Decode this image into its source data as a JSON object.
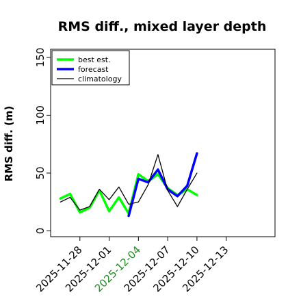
{
  "chart_data": {
    "type": "line",
    "title": "RMS diff., mixed layer depth",
    "xlabel": "",
    "ylabel": "RMS diff. (m)",
    "ylim": [
      -5,
      157
    ],
    "yticks": [
      0,
      50,
      100,
      150
    ],
    "xlim": [
      -1.0,
      22.0
    ],
    "x_ticks": [
      {
        "label": "2025-11-28",
        "pos": 2,
        "color": "#000000"
      },
      {
        "label": "2025-12-01",
        "pos": 5,
        "color": "#000000"
      },
      {
        "label": "2025-12-04",
        "pos": 8,
        "color": "#228B22"
      },
      {
        "label": "2025-12-07",
        "pos": 11,
        "color": "#000000"
      },
      {
        "label": "2025-12-10",
        "pos": 14,
        "color": "#000000"
      },
      {
        "label": "2025-12-13",
        "pos": 17,
        "color": "#000000"
      }
    ],
    "x": [
      0,
      1,
      2,
      3,
      4,
      5,
      6,
      7,
      8,
      9,
      10,
      11,
      12,
      13,
      14,
      15
    ],
    "series": [
      {
        "name": "best est.",
        "color": "#00ff00",
        "width": 3.5,
        "values": [
          28,
          32,
          16,
          20,
          35,
          17,
          29,
          15,
          49,
          43,
          49,
          37,
          31,
          36,
          31,
          null
        ]
      },
      {
        "name": "forecast",
        "color": "#0000ff",
        "width": 3.5,
        "values": [
          null,
          null,
          null,
          null,
          null,
          null,
          null,
          13,
          45,
          42,
          53,
          36,
          30,
          39,
          67,
          null
        ]
      },
      {
        "name": "climatology",
        "color": "#000000",
        "width": 1.3,
        "values": [
          25,
          29,
          18,
          21,
          36,
          27,
          38,
          23,
          25,
          40,
          66,
          35,
          21,
          36,
          50,
          null
        ]
      }
    ],
    "legend": {
      "position": "top-left",
      "entries": [
        "best est.",
        "forecast",
        "climatology"
      ]
    },
    "grid": false
  }
}
